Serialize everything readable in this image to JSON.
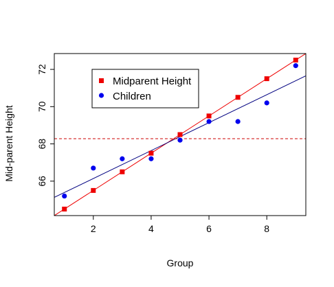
{
  "chart_data": {
    "type": "scatter",
    "title": "",
    "xlabel": "Group",
    "ylabel": "Mid-parent Height",
    "xlim": [
      0.65,
      9.35
    ],
    "ylim": [
      64.15,
      72.85
    ],
    "x_ticks": [
      2,
      4,
      6,
      8
    ],
    "x_tick_labels": [
      "2",
      "4",
      "6",
      "8"
    ],
    "y_ticks": [
      66,
      68,
      70,
      72
    ],
    "y_tick_labels": [
      "66",
      "68",
      "70",
      "72"
    ],
    "grid": false,
    "legend_position": "top-left (inset)",
    "series": [
      {
        "name": "Midparent Height",
        "marker": "square",
        "color": "#ee0000",
        "x": [
          1,
          2,
          3,
          4,
          5,
          6,
          7,
          8,
          9
        ],
        "y": [
          64.5,
          65.5,
          66.5,
          67.5,
          68.5,
          69.5,
          70.5,
          71.5,
          72.5
        ]
      },
      {
        "name": "Children",
        "marker": "circle",
        "color": "#0000ee",
        "x": [
          1,
          2,
          3,
          4,
          5,
          6,
          7,
          8,
          9
        ],
        "y": [
          65.2,
          66.7,
          67.2,
          67.2,
          68.2,
          69.2,
          69.2,
          70.2,
          72.2
        ]
      }
    ],
    "fit_lines": [
      {
        "series": "Midparent Height",
        "color": "#ee0000",
        "intercept": 63.5,
        "slope": 1.0
      },
      {
        "series": "Children",
        "color": "#000080",
        "intercept": 64.64,
        "slope": 0.75
      }
    ],
    "reference_line": {
      "orientation": "horizontal",
      "y": 68.28,
      "style": "dashed",
      "color": "#cc0000"
    }
  }
}
